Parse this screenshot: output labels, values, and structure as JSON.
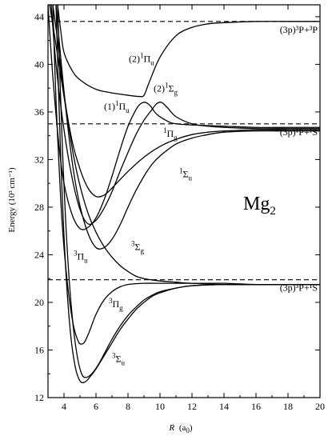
{
  "chart_data": {
    "type": "line",
    "title": "",
    "xlabel": {
      "prefix": "R",
      "unit": "(a",
      "sub": "0",
      "close": ")"
    },
    "ylabel": "Energy (10³ cm⁻¹)",
    "xlim": [
      3.0,
      20.0
    ],
    "ylim": [
      12,
      45
    ],
    "xticks": [
      4,
      6,
      8,
      10,
      12,
      14,
      16,
      18,
      20
    ],
    "yticks": [
      12,
      16,
      20,
      24,
      28,
      32,
      36,
      40,
      44
    ],
    "molecule_label": {
      "text": "Mg",
      "sub": "2"
    },
    "asymptotes": [
      {
        "y": 43.6,
        "label": "(3p)³P+³P"
      },
      {
        "y": 35.0,
        "label": "(3p)¹P+¹S"
      },
      {
        "y": 21.9,
        "label": "(3p)³P+¹S"
      }
    ],
    "series": [
      {
        "name": "(2)¹Πu",
        "x": [
          3.6,
          3.8,
          4.0,
          4.5,
          5.0,
          6.0,
          7.0,
          8.0,
          8.7,
          9.0,
          9.3,
          10.0,
          11.0,
          12.0,
          13.0,
          14.0,
          16.0,
          18.0,
          20.0
        ],
        "y": [
          45.0,
          42.8,
          41.0,
          39.5,
          38.7,
          37.9,
          37.6,
          37.4,
          37.3,
          37.4,
          38.4,
          40.6,
          42.4,
          43.1,
          43.4,
          43.5,
          43.6,
          43.6,
          43.6
        ]
      },
      {
        "name": "(2)¹Σg",
        "x": [
          3.2,
          3.5,
          4.0,
          4.5,
          5.0,
          5.5,
          6.0,
          6.5,
          7.0,
          7.5,
          8.0,
          8.5,
          9.0,
          9.5,
          9.8,
          10.1,
          10.5,
          11.0,
          12.0,
          13.0,
          14.0,
          16.0,
          18.0,
          20.0
        ],
        "y": [
          45.0,
          40.0,
          34.5,
          30.5,
          27.8,
          26.6,
          26.9,
          27.9,
          29.3,
          31.0,
          32.6,
          34.1,
          35.3,
          36.2,
          36.7,
          36.8,
          36.3,
          35.6,
          35.0,
          34.8,
          34.7,
          34.6,
          34.6,
          34.6
        ]
      },
      {
        "name": "(1)¹Πu",
        "x": [
          3.0,
          3.3,
          3.7,
          4.0,
          4.5,
          5.0,
          5.5,
          6.0,
          6.5,
          7.0,
          7.5,
          8.0,
          8.5,
          8.8,
          9.1,
          9.4,
          9.8,
          10.5,
          11.0,
          12.0,
          14.0,
          16.0,
          18.0,
          20.0
        ],
        "y": [
          45.0,
          39.0,
          33.0,
          30.0,
          27.4,
          26.2,
          26.3,
          27.1,
          28.6,
          30.6,
          32.8,
          34.8,
          36.2,
          36.7,
          36.8,
          36.5,
          35.8,
          35.2,
          35.0,
          34.9,
          34.8,
          34.7,
          34.7,
          34.7
        ]
      },
      {
        "name": "¹Πg",
        "x": [
          3.3,
          3.6,
          4.0,
          4.5,
          5.0,
          5.5,
          6.0,
          6.5,
          7.0,
          8.0,
          9.0,
          10.0,
          11.0,
          12.0,
          13.0,
          14.0,
          16.0,
          18.0,
          20.0
        ],
        "y": [
          45.0,
          42.0,
          37.5,
          33.6,
          31.2,
          29.6,
          28.9,
          29.0,
          29.6,
          31.0,
          32.2,
          33.1,
          33.7,
          34.1,
          34.3,
          34.4,
          34.5,
          34.5,
          34.5
        ]
      },
      {
        "name": "¹Σu",
        "x": [
          3.5,
          3.8,
          4.2,
          4.6,
          5.0,
          5.5,
          6.0,
          6.5,
          7.0,
          7.5,
          8.0,
          8.5,
          9.0,
          9.5,
          10.0,
          11.0,
          12.0,
          13.0,
          14.0,
          16.0,
          18.0,
          20.0
        ],
        "y": [
          45.0,
          40.5,
          35.2,
          31.0,
          28.1,
          25.8,
          24.6,
          24.6,
          25.3,
          26.5,
          28.0,
          29.4,
          30.6,
          31.6,
          32.3,
          33.3,
          33.8,
          34.1,
          34.3,
          34.4,
          34.4,
          34.4
        ]
      },
      {
        "name": "³Σg",
        "x": [
          3.1,
          3.4,
          3.8,
          4.2,
          4.6,
          5.0,
          5.5,
          6.0,
          6.5,
          7.0,
          7.5,
          8.0,
          8.5,
          9.0,
          10.0,
          11.0,
          12.0,
          14.0,
          16.0,
          18.0,
          20.0
        ],
        "y": [
          45.0,
          42.5,
          39.0,
          35.6,
          32.3,
          29.8,
          27.5,
          25.9,
          24.7,
          23.8,
          23.1,
          22.6,
          22.2,
          22.0,
          21.8,
          21.7,
          21.6,
          21.6,
          21.5,
          21.5,
          21.5
        ]
      },
      {
        "name": "³Πu",
        "x": [
          3.3,
          3.5,
          3.8,
          4.0,
          4.3,
          4.6,
          4.9,
          5.1,
          5.3,
          5.6,
          6.0,
          6.5,
          7.0,
          7.5,
          8.0,
          9.0,
          10.0,
          11.0,
          12.0,
          14.0,
          16.0,
          18.0,
          20.0
        ],
        "y": [
          45.0,
          37.0,
          28.5,
          24.6,
          20.6,
          18.0,
          16.7,
          16.5,
          16.7,
          17.6,
          19.0,
          20.2,
          20.9,
          21.3,
          21.5,
          21.6,
          21.6,
          21.6,
          21.6,
          21.5,
          21.5,
          21.5,
          21.5
        ]
      },
      {
        "name": "³Πg",
        "x": [
          3.6,
          3.9,
          4.2,
          4.5,
          4.8,
          5.1,
          5.4,
          5.8,
          6.2,
          6.6,
          7.0,
          7.5,
          8.0,
          8.5,
          9.0,
          9.5,
          10.0,
          11.0,
          12.0,
          14.0,
          16.0,
          18.0,
          20.0
        ],
        "y": [
          45.0,
          33.0,
          24.5,
          19.0,
          15.7,
          14.0,
          13.7,
          14.1,
          14.9,
          15.9,
          16.9,
          18.0,
          18.9,
          19.6,
          20.2,
          20.6,
          20.9,
          21.2,
          21.4,
          21.5,
          21.5,
          21.5,
          21.5
        ]
      },
      {
        "name": "³Σu",
        "x": [
          3.5,
          3.8,
          4.1,
          4.4,
          4.7,
          5.0,
          5.3,
          5.6,
          6.0,
          6.5,
          7.0,
          7.5,
          8.0,
          8.5,
          9.0,
          9.5,
          10.0,
          11.0,
          12.0,
          14.0,
          16.0,
          18.0,
          20.0
        ],
        "y": [
          45.0,
          32.0,
          23.0,
          17.5,
          14.6,
          13.4,
          13.3,
          13.7,
          14.4,
          15.5,
          16.6,
          17.7,
          18.6,
          19.4,
          20.0,
          20.5,
          20.8,
          21.2,
          21.4,
          21.5,
          21.5,
          21.5,
          21.5
        ]
      }
    ],
    "annotations": [
      {
        "text": "(2)",
        "sup": "1",
        "main": "Π",
        "sub": "u",
        "at_x": 8.05,
        "at_y": 40.2
      },
      {
        "text": "(2)",
        "sup": "1",
        "main": "Σ",
        "sub": "g",
        "at_x": 9.6,
        "at_y": 37.7
      },
      {
        "text": "(1)",
        "sup": "1",
        "main": "Π",
        "sub": "u",
        "at_x": 6.5,
        "at_y": 36.2
      },
      {
        "text": "",
        "sup": "1",
        "main": "Π",
        "sub": "g",
        "at_x": 10.2,
        "at_y": 33.9
      },
      {
        "text": "",
        "sup": "1",
        "main": "Σ",
        "sub": "u",
        "at_x": 11.2,
        "at_y": 30.5
      },
      {
        "text": "",
        "sup": "3",
        "main": "Σ",
        "sub": "g",
        "at_x": 8.2,
        "at_y": 24.4
      },
      {
        "text": "",
        "sup": "3",
        "main": "Π",
        "sub": "u",
        "at_x": 4.6,
        "at_y": 23.6
      },
      {
        "text": "",
        "sup": "3",
        "main": "Π",
        "sub": "g",
        "at_x": 6.8,
        "at_y": 19.6
      },
      {
        "text": "",
        "sup": "3",
        "main": "Σ",
        "sub": "u",
        "at_x": 7.0,
        "at_y": 15.0
      }
    ]
  }
}
